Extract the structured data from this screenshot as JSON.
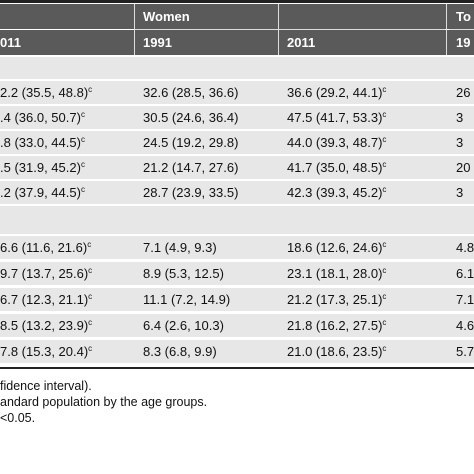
{
  "header": {
    "group_women": "Women",
    "group_total": "To",
    "col_prev_2011": "011",
    "col_women_1991": "1991",
    "col_women_2011": "2011",
    "col_total_1991": "19"
  },
  "section1": [
    {
      "c0": "2.2 (35.5, 48.8)",
      "c0_sup": "c",
      "c1": "32.6 (28.5, 36.6)",
      "c2": "36.6 (29.2, 44.1)",
      "c2_sup": "c",
      "c3": "26"
    },
    {
      "c0": ".4 (36.0, 50.7)",
      "c0_sup": "c",
      "c1": "30.5 (24.6, 36.4)",
      "c2": "47.5 (41.7, 53.3)",
      "c2_sup": "c",
      "c3": "3"
    },
    {
      "c0": ".8 (33.0, 44.5)",
      "c0_sup": "c",
      "c1": "24.5 (19.2, 29.8)",
      "c2": "44.0 (39.3, 48.7)",
      "c2_sup": "c",
      "c3": "3"
    },
    {
      "c0": ".5 (31.9, 45.2)",
      "c0_sup": "c",
      "c1": "21.2 (14.7, 27.6)",
      "c2": "41.7 (35.0, 48.5)",
      "c2_sup": "c",
      "c3": "20"
    },
    {
      "c0": ".2 (37.9, 44.5)",
      "c0_sup": "c",
      "c1": "28.7 (23.9, 33.5)",
      "c2": "42.3 (39.3, 45.2)",
      "c2_sup": "c",
      "c3": "3"
    }
  ],
  "section2": [
    {
      "c0": "6.6 (11.6, 21.6)",
      "c0_sup": "c",
      "c1": "7.1 (4.9, 9.3)",
      "c2": "18.6 (12.6, 24.6)",
      "c2_sup": "c",
      "c3": "4.8"
    },
    {
      "c0": "9.7 (13.7, 25.6)",
      "c0_sup": "c",
      "c1": "8.9 (5.3, 12.5)",
      "c2": "23.1 (18.1, 28.0)",
      "c2_sup": "c",
      "c3": "6.1"
    },
    {
      "c0": "6.7 (12.3, 21.1)",
      "c0_sup": "c",
      "c1": "11.1 (7.2, 14.9)",
      "c2": "21.2 (17.3, 25.1)",
      "c2_sup": "c",
      "c3": "7.1"
    },
    {
      "c0": "8.5 (13.2, 23.9)",
      "c0_sup": "c",
      "c1": "6.4 (2.6, 10.3)",
      "c2": "21.8 (16.2, 27.5)",
      "c2_sup": "c",
      "c3": "4.6"
    },
    {
      "c0": "7.8 (15.3, 20.4)",
      "c0_sup": "c",
      "c1": "8.3 (6.8, 9.9)",
      "c2": "21.0 (18.6, 23.5)",
      "c2_sup": "c",
      "c3": "5.7"
    }
  ],
  "footnotes": {
    "line1": "fidence interval).",
    "line2": "andard population by the age groups.",
    "line3": "<0.05."
  }
}
